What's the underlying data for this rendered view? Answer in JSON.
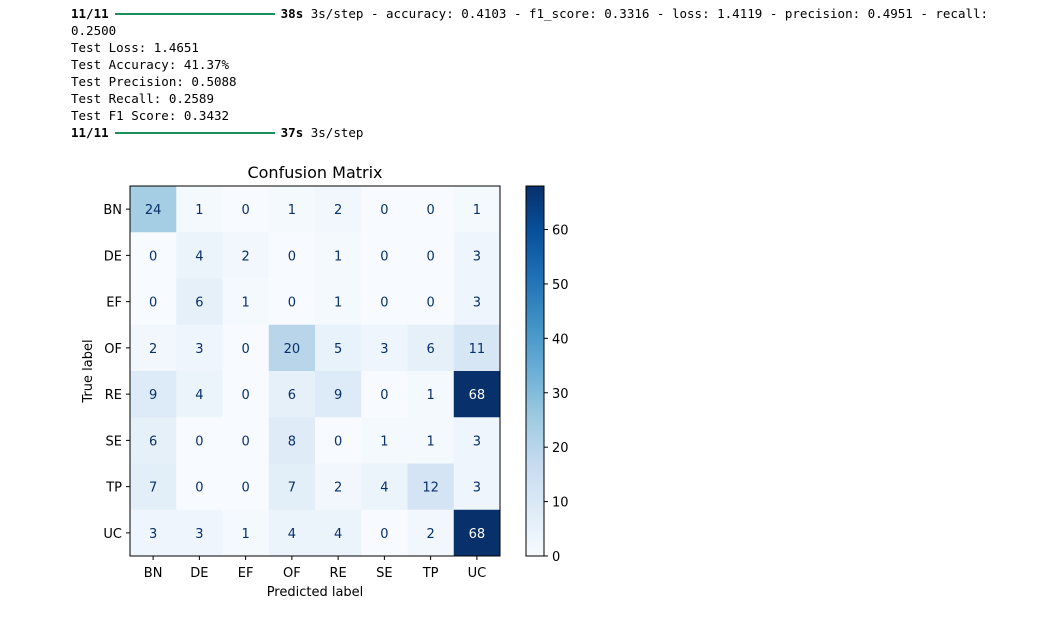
{
  "log": {
    "step1": {
      "progress": "11/11",
      "time": "38s",
      "rest": "3s/step - accuracy: 0.4103 - f1_score: 0.3316 - loss: 1.4119 - precision: 0.4951 - recall:"
    },
    "wrap": "0.2500",
    "metrics": [
      "Test Loss: 1.4651",
      "Test Accuracy: 41.37%",
      "Test Precision: 0.5088",
      "Test Recall: 0.2589",
      "Test F1 Score: 0.3432"
    ],
    "step2": {
      "progress": "11/11",
      "time": "37s",
      "rest": "3s/step"
    }
  },
  "chart_data": {
    "type": "heatmap",
    "title": "Confusion Matrix",
    "xlabel": "Predicted label",
    "ylabel": "True label",
    "x_categories": [
      "BN",
      "DE",
      "EF",
      "OF",
      "RE",
      "SE",
      "TP",
      "UC"
    ],
    "y_categories": [
      "BN",
      "DE",
      "EF",
      "OF",
      "RE",
      "SE",
      "TP",
      "UC"
    ],
    "values": [
      [
        24,
        1,
        0,
        1,
        2,
        0,
        0,
        1
      ],
      [
        0,
        4,
        2,
        0,
        1,
        0,
        0,
        3
      ],
      [
        0,
        6,
        1,
        0,
        1,
        0,
        0,
        3
      ],
      [
        2,
        3,
        0,
        20,
        5,
        3,
        6,
        11
      ],
      [
        9,
        4,
        0,
        6,
        9,
        0,
        1,
        68
      ],
      [
        6,
        0,
        0,
        8,
        0,
        1,
        1,
        3
      ],
      [
        7,
        0,
        0,
        7,
        2,
        4,
        12,
        3
      ],
      [
        3,
        3,
        1,
        4,
        4,
        0,
        2,
        68
      ]
    ],
    "colormap": "Blues",
    "colorbar": {
      "min": 0,
      "max": 68,
      "ticks": [
        "0",
        "10",
        "20",
        "30",
        "40",
        "50",
        "60"
      ]
    }
  }
}
